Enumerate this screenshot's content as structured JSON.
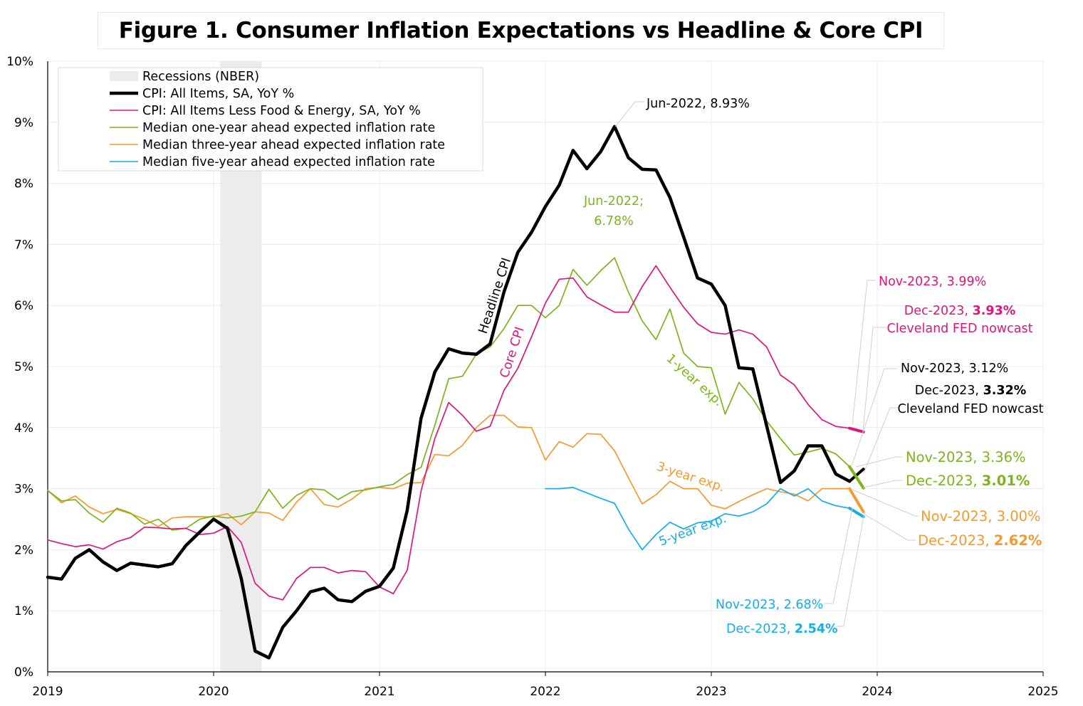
{
  "title": "Figure 1. Consumer Inflation Expectations vs Headline & Core CPI",
  "colors": {
    "headline": "#000000",
    "core": "#e0147d",
    "one_year": "#7cb518",
    "three_year": "#f59a2e",
    "five_year": "#14aee8",
    "recession": "#ececec",
    "grid": "#ececec"
  },
  "chart_data": {
    "type": "line",
    "title": "Figure 1. Consumer Inflation Expectations vs Headline & Core CPI",
    "xlabel": "",
    "ylabel": "",
    "xlim": [
      2019,
      2025
    ],
    "ylim": [
      0,
      10
    ],
    "x_ticks": [
      "2019",
      "2020",
      "2021",
      "2022",
      "2023",
      "2024",
      "2025"
    ],
    "y_ticks": [
      "0%",
      "1%",
      "2%",
      "3%",
      "4%",
      "5%",
      "6%",
      "7%",
      "8%",
      "9%",
      "10%"
    ],
    "grid": true,
    "legend_position": "top-left",
    "recession": {
      "name": "Recessions (NBER)",
      "start": 2020.04,
      "end": 2020.29
    },
    "series": [
      {
        "name": "CPI: All Items, SA, YoY %",
        "key": "headline",
        "start": 2019.0,
        "values": [
          1.55,
          1.52,
          1.86,
          2.0,
          1.8,
          1.66,
          1.78,
          1.75,
          1.72,
          1.77,
          2.07,
          2.29,
          2.5,
          2.35,
          1.53,
          0.34,
          0.23,
          0.73,
          1.0,
          1.31,
          1.37,
          1.18,
          1.15,
          1.32,
          1.4,
          1.7,
          2.64,
          4.15,
          4.91,
          5.29,
          5.22,
          5.2,
          5.37,
          6.22,
          6.87,
          7.2,
          7.62,
          7.97,
          8.54,
          8.24,
          8.52,
          8.93,
          8.42,
          8.23,
          8.22,
          7.77,
          7.12,
          6.45,
          6.35,
          6.0,
          4.98,
          4.96,
          4.03,
          3.1,
          3.29,
          3.7,
          3.7,
          3.24,
          3.12
        ]
      },
      {
        "name": "CPI: All Items Less Food & Energy, SA, YoY %",
        "key": "core",
        "start": 2019.0,
        "values": [
          2.16,
          2.1,
          2.05,
          2.08,
          2.01,
          2.13,
          2.2,
          2.37,
          2.36,
          2.34,
          2.35,
          2.25,
          2.27,
          2.38,
          2.12,
          1.45,
          1.24,
          1.18,
          1.53,
          1.71,
          1.71,
          1.62,
          1.66,
          1.64,
          1.39,
          1.28,
          1.66,
          2.96,
          3.82,
          4.41,
          4.2,
          3.94,
          4.02,
          4.61,
          4.97,
          5.49,
          6.04,
          6.43,
          6.45,
          6.14,
          6.01,
          5.89,
          5.89,
          6.31,
          6.65,
          6.3,
          5.97,
          5.7,
          5.56,
          5.53,
          5.6,
          5.53,
          5.32,
          4.86,
          4.7,
          4.38,
          4.13,
          4.02,
          3.99
        ]
      },
      {
        "name": "Median one-year ahead expected inflation rate",
        "key": "one_year",
        "start": 2019.0,
        "values": [
          2.97,
          2.8,
          2.82,
          2.6,
          2.45,
          2.68,
          2.6,
          2.42,
          2.5,
          2.32,
          2.35,
          2.5,
          2.55,
          2.52,
          2.55,
          2.62,
          2.99,
          2.68,
          2.89,
          3.0,
          2.98,
          2.82,
          2.95,
          2.98,
          3.03,
          3.07,
          3.23,
          3.35,
          4.04,
          4.8,
          4.84,
          5.2,
          5.32,
          5.62,
          6.0,
          6.0,
          5.8,
          6.0,
          6.59,
          6.33,
          6.57,
          6.78,
          6.22,
          5.75,
          5.44,
          5.94,
          5.22,
          5.0,
          4.98,
          4.22,
          4.74,
          4.47,
          4.11,
          3.82,
          3.55,
          3.6,
          3.66,
          3.57,
          3.36
        ]
      },
      {
        "name": "Median three-year ahead expected inflation rate",
        "key": "three_year",
        "start": 2019.0,
        "values": [
          2.97,
          2.77,
          2.88,
          2.7,
          2.59,
          2.66,
          2.59,
          2.5,
          2.38,
          2.52,
          2.54,
          2.54,
          2.54,
          2.59,
          2.41,
          2.62,
          2.6,
          2.48,
          2.78,
          3.0,
          2.74,
          2.7,
          2.83,
          3.0,
          3.02,
          3.0,
          3.09,
          3.1,
          3.56,
          3.54,
          3.71,
          4.0,
          4.2,
          4.2,
          4.01,
          4.0,
          3.47,
          3.77,
          3.68,
          3.9,
          3.89,
          3.62,
          3.18,
          2.75,
          2.9,
          3.12,
          3.0,
          3.0,
          2.73,
          2.67,
          2.79,
          2.9,
          3.0,
          2.95,
          2.91,
          2.8,
          3.0,
          3.0,
          3.0
        ]
      },
      {
        "name": "Median five-year ahead expected inflation rate",
        "key": "five_year",
        "start": 2022.0,
        "values": [
          3.0,
          3.0,
          3.02,
          2.93,
          2.84,
          2.76,
          2.34,
          2.0,
          2.25,
          2.45,
          2.34,
          2.44,
          2.47,
          2.59,
          2.55,
          2.62,
          2.75,
          3.0,
          2.88,
          3.0,
          2.8,
          2.72,
          2.68
        ]
      }
    ],
    "nowcasts": [
      {
        "key": "core",
        "from": [
          2023.833,
          3.99
        ],
        "to": [
          2023.917,
          3.93
        ]
      },
      {
        "key": "headline",
        "from": [
          2023.833,
          3.12
        ],
        "to": [
          2023.917,
          3.32
        ]
      },
      {
        "key": "one_year",
        "from": [
          2023.833,
          3.36
        ],
        "to": [
          2023.917,
          3.01
        ]
      },
      {
        "key": "three_year",
        "from": [
          2023.833,
          3.0
        ],
        "to": [
          2023.917,
          2.62
        ]
      },
      {
        "key": "five_year",
        "from": [
          2023.833,
          2.68
        ],
        "to": [
          2023.917,
          2.54
        ]
      }
    ]
  },
  "labels": {
    "headline_cpi": "Headline CPI",
    "core_cpi": "Core CPI",
    "one_year_exp": "1-year exp.",
    "three_year_exp": "3-year exp.",
    "five_year_exp": "5-year exp."
  },
  "annotations": {
    "cpi_peak": "Jun-2022, 8.93%",
    "exp_peak_line1": "Jun-2022;",
    "exp_peak_line2": "6.78%",
    "core_nov": "Nov-2023, 3.99%",
    "core_dec_prefix": "Dec-2023, ",
    "core_dec_value": "3.93%",
    "core_dec_note": "Cleveland FED nowcast",
    "head_nov": "Nov-2023, 3.12%",
    "head_dec_prefix": "Dec-2023, ",
    "head_dec_value": "3.32%",
    "head_dec_note": "Cleveland FED nowcast",
    "one_nov": "Nov-2023, 3.36%",
    "one_dec_prefix": "Dec-2023, ",
    "one_dec_value": "3.01%",
    "three_nov": "Nov-2023, 3.00%",
    "three_dec_prefix": "Dec-2023, ",
    "three_dec_value": "2.62%",
    "five_nov": "Nov-2023, 2.68%",
    "five_dec_prefix": "Dec-2023, ",
    "five_dec_value": "2.54%"
  }
}
